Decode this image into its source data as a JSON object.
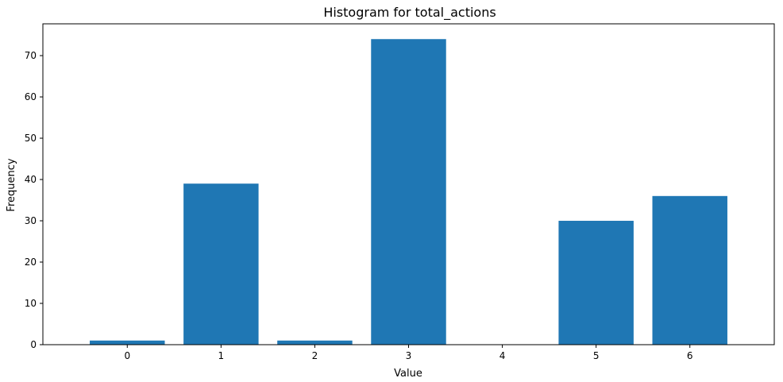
{
  "chart_data": {
    "type": "bar",
    "title": "Histogram for total_actions",
    "xlabel": "Value",
    "ylabel": "Frequency",
    "categories": [
      "0",
      "1",
      "2",
      "3",
      "4",
      "5",
      "6"
    ],
    "values": [
      1,
      39,
      1,
      74,
      0,
      30,
      36
    ],
    "yticks": [
      "0",
      "10",
      "20",
      "30",
      "40",
      "50",
      "60",
      "70"
    ],
    "ylim": [
      0,
      77.7
    ],
    "grid": false,
    "bar_color": "#1f77b4"
  }
}
